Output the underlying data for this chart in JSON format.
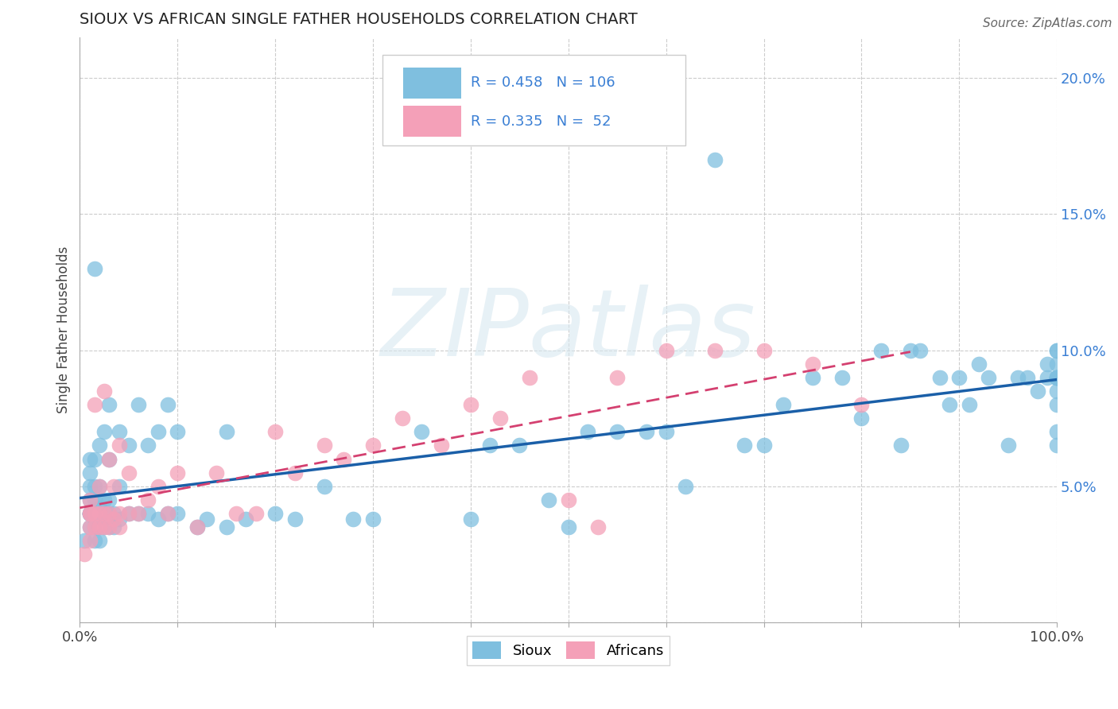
{
  "title": "SIOUX VS AFRICAN SINGLE FATHER HOUSEHOLDS CORRELATION CHART",
  "source": "Source: ZipAtlas.com",
  "ylabel": "Single Father Households",
  "xlim": [
    0,
    1.0
  ],
  "ylim": [
    0,
    0.215
  ],
  "sioux_color": "#7fbfdf",
  "africans_color": "#f4a0b8",
  "sioux_line_color": "#1a5fa8",
  "africans_line_color": "#d44070",
  "R_sioux": 0.458,
  "N_sioux": 106,
  "R_africans": 0.335,
  "N_africans": 52,
  "watermark": "ZIPatlas",
  "legend_text_color": "#3a7fd4",
  "sioux_x": [
    0.005,
    0.01,
    0.01,
    0.01,
    0.01,
    0.01,
    0.01,
    0.01,
    0.01,
    0.01,
    0.015,
    0.015,
    0.015,
    0.015,
    0.015,
    0.015,
    0.015,
    0.015,
    0.02,
    0.02,
    0.02,
    0.02,
    0.02,
    0.02,
    0.02,
    0.025,
    0.025,
    0.025,
    0.025,
    0.03,
    0.03,
    0.03,
    0.03,
    0.03,
    0.035,
    0.035,
    0.04,
    0.04,
    0.04,
    0.05,
    0.05,
    0.06,
    0.06,
    0.07,
    0.07,
    0.08,
    0.08,
    0.09,
    0.09,
    0.1,
    0.1,
    0.12,
    0.13,
    0.15,
    0.15,
    0.17,
    0.2,
    0.22,
    0.25,
    0.28,
    0.3,
    0.35,
    0.4,
    0.42,
    0.45,
    0.48,
    0.5,
    0.52,
    0.55,
    0.58,
    0.6,
    0.62,
    0.65,
    0.68,
    0.7,
    0.72,
    0.75,
    0.78,
    0.8,
    0.82,
    0.84,
    0.85,
    0.86,
    0.88,
    0.89,
    0.9,
    0.91,
    0.92,
    0.93,
    0.95,
    0.96,
    0.97,
    0.98,
    0.99,
    0.99,
    1.0,
    1.0,
    1.0,
    1.0,
    1.0,
    1.0,
    1.0,
    1.0,
    1.0,
    1.0,
    1.0
  ],
  "sioux_y": [
    0.03,
    0.035,
    0.04,
    0.04,
    0.04,
    0.04,
    0.045,
    0.05,
    0.055,
    0.06,
    0.03,
    0.035,
    0.038,
    0.04,
    0.045,
    0.05,
    0.06,
    0.13,
    0.03,
    0.035,
    0.038,
    0.04,
    0.042,
    0.05,
    0.065,
    0.035,
    0.04,
    0.045,
    0.07,
    0.035,
    0.04,
    0.045,
    0.06,
    0.08,
    0.035,
    0.04,
    0.038,
    0.05,
    0.07,
    0.04,
    0.065,
    0.04,
    0.08,
    0.04,
    0.065,
    0.038,
    0.07,
    0.04,
    0.08,
    0.04,
    0.07,
    0.035,
    0.038,
    0.035,
    0.07,
    0.038,
    0.04,
    0.038,
    0.05,
    0.038,
    0.038,
    0.07,
    0.038,
    0.065,
    0.065,
    0.045,
    0.035,
    0.07,
    0.07,
    0.07,
    0.07,
    0.05,
    0.17,
    0.065,
    0.065,
    0.08,
    0.09,
    0.09,
    0.075,
    0.1,
    0.065,
    0.1,
    0.1,
    0.09,
    0.08,
    0.09,
    0.08,
    0.095,
    0.09,
    0.065,
    0.09,
    0.09,
    0.085,
    0.095,
    0.09,
    0.095,
    0.08,
    0.1,
    0.09,
    0.085,
    0.1,
    0.07,
    0.065,
    0.09,
    0.09,
    0.09
  ],
  "africans_x": [
    0.005,
    0.01,
    0.01,
    0.01,
    0.01,
    0.01,
    0.015,
    0.015,
    0.015,
    0.02,
    0.02,
    0.02,
    0.025,
    0.025,
    0.025,
    0.03,
    0.03,
    0.03,
    0.035,
    0.035,
    0.04,
    0.04,
    0.04,
    0.05,
    0.05,
    0.06,
    0.07,
    0.08,
    0.09,
    0.1,
    0.12,
    0.14,
    0.16,
    0.18,
    0.2,
    0.22,
    0.25,
    0.27,
    0.3,
    0.33,
    0.37,
    0.4,
    0.43,
    0.46,
    0.5,
    0.53,
    0.55,
    0.6,
    0.65,
    0.7,
    0.75,
    0.8
  ],
  "africans_y": [
    0.025,
    0.03,
    0.035,
    0.04,
    0.04,
    0.045,
    0.035,
    0.04,
    0.08,
    0.035,
    0.04,
    0.05,
    0.035,
    0.04,
    0.085,
    0.035,
    0.04,
    0.06,
    0.038,
    0.05,
    0.035,
    0.04,
    0.065,
    0.04,
    0.055,
    0.04,
    0.045,
    0.05,
    0.04,
    0.055,
    0.035,
    0.055,
    0.04,
    0.04,
    0.07,
    0.055,
    0.065,
    0.06,
    0.065,
    0.075,
    0.065,
    0.08,
    0.075,
    0.09,
    0.045,
    0.035,
    0.09,
    0.1,
    0.1,
    0.1,
    0.095,
    0.08
  ]
}
